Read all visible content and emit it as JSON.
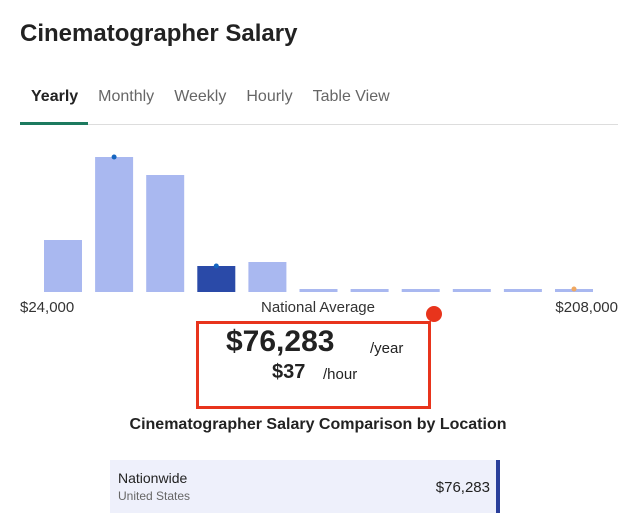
{
  "header": {
    "title": "Cinematographer Salary"
  },
  "tabs": {
    "items": [
      "Yearly",
      "Monthly",
      "Weekly",
      "Hourly",
      "Table View"
    ],
    "selected": 0
  },
  "chart_data": {
    "type": "bar",
    "values": [
      52,
      135,
      117,
      26,
      30,
      3,
      3,
      3,
      3,
      3,
      3
    ],
    "colors": [
      "#a9b8f0",
      "#a9b8f0",
      "#a9b8f0",
      "#2a4aa8",
      "#a9b8f0",
      "#a9b8f0",
      "#a9b8f0",
      "#a9b8f0",
      "#a9b8f0",
      "#a9b8f0",
      "#a9b8f0"
    ],
    "dot_colors": [
      null,
      "#1565c0",
      null,
      "#1565c0",
      null,
      null,
      null,
      null,
      null,
      null,
      "#f0a860"
    ],
    "ylim": [
      0,
      140
    ],
    "x_labels": {
      "min": "$24,000",
      "center": "National Average",
      "max": "$208,000"
    }
  },
  "salary": {
    "yearly": "$76,283",
    "yearly_unit": "/year",
    "hourly": "$37",
    "hourly_unit": "/hour"
  },
  "comparison": {
    "title": "Cinematographer Salary Comparison by Location",
    "rows": [
      {
        "location": "Nationwide",
        "region": "United States",
        "salary": "$76,283"
      }
    ]
  }
}
